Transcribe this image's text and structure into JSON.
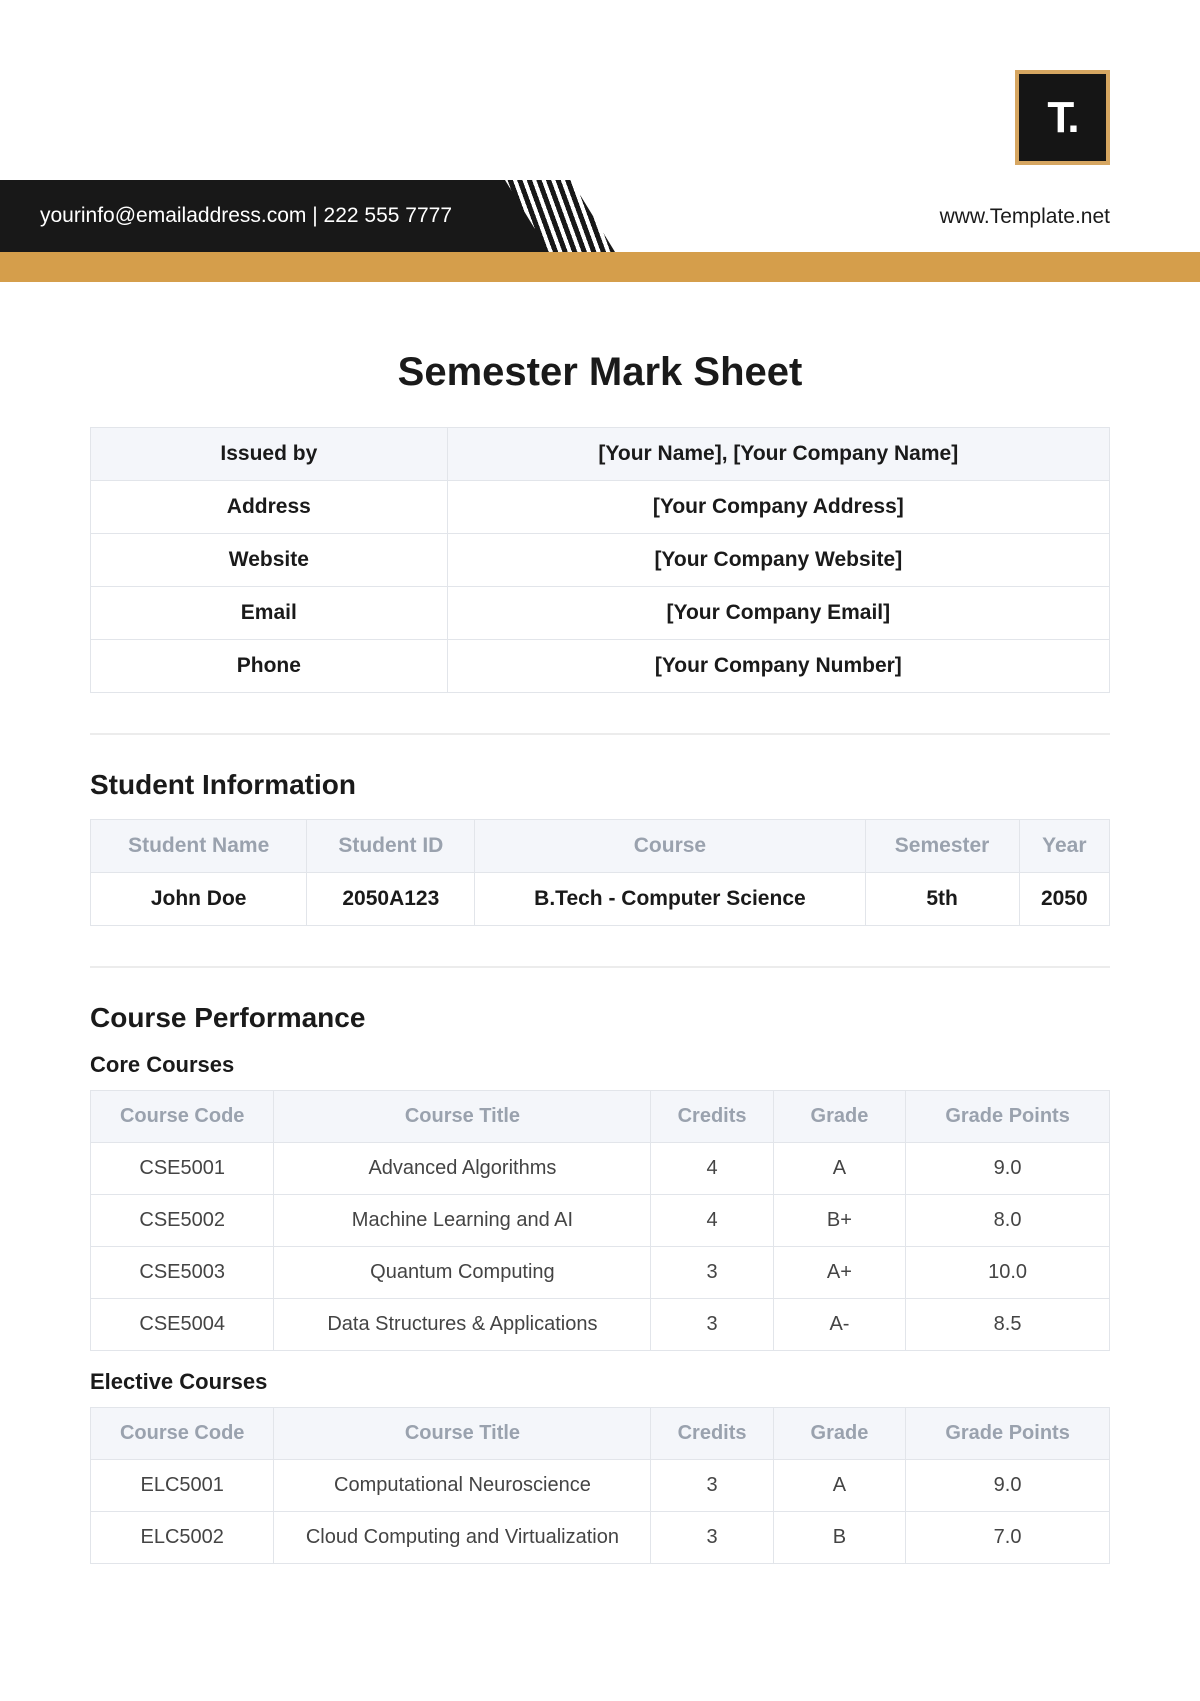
{
  "header": {
    "logo_text": "T.",
    "contact_line": "yourinfo@emailaddress.com  |  222 555 7777",
    "website": "www.Template.net",
    "colors": {
      "black": "#181818",
      "gold": "#d59e4b",
      "logo_border": "#d6a661",
      "th_bg": "#f4f6fa",
      "th_text": "#9aa2ae",
      "border": "#e2e5ea"
    }
  },
  "title": "Semester Mark Sheet",
  "issuer": {
    "rows": [
      {
        "label": "Issued by",
        "value": "[Your Name], [Your Company Name]"
      },
      {
        "label": "Address",
        "value": "[Your Company Address]"
      },
      {
        "label": "Website",
        "value": "[Your Company Website]"
      },
      {
        "label": "Email",
        "value": "[Your Company Email]"
      },
      {
        "label": "Phone",
        "value": "[Your Company Number]"
      }
    ]
  },
  "student_section_title": "Student Information",
  "student": {
    "columns": [
      "Student Name",
      "Student ID",
      "Course",
      "Semester",
      "Year"
    ],
    "row": [
      "John Doe",
      "2050A123",
      "B.Tech - Computer Science",
      "5th",
      "2050"
    ]
  },
  "course_section_title": "Course Performance",
  "core_heading": "Core Courses",
  "elective_heading": "Elective Courses",
  "course_columns": [
    "Course Code",
    "Course Title",
    "Credits",
    "Grade",
    "Grade Points"
  ],
  "core_courses": [
    {
      "code": "CSE5001",
      "title": "Advanced Algorithms",
      "credits": "4",
      "grade": "A",
      "gp": "9.0"
    },
    {
      "code": "CSE5002",
      "title": "Machine Learning and AI",
      "credits": "4",
      "grade": "B+",
      "gp": "8.0"
    },
    {
      "code": "CSE5003",
      "title": "Quantum Computing",
      "credits": "3",
      "grade": "A+",
      "gp": "10.0"
    },
    {
      "code": "CSE5004",
      "title": "Data Structures & Applications",
      "credits": "3",
      "grade": "A-",
      "gp": "8.5"
    }
  ],
  "elective_courses": [
    {
      "code": "ELC5001",
      "title": "Computational Neuroscience",
      "credits": "3",
      "grade": "A",
      "gp": "9.0"
    },
    {
      "code": "ELC5002",
      "title": "Cloud Computing and Virtualization",
      "credits": "3",
      "grade": "B",
      "gp": "7.0"
    }
  ]
}
